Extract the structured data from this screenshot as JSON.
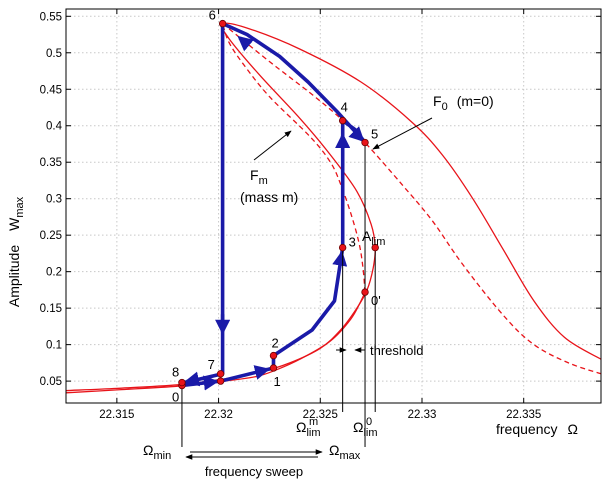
{
  "chart_data": {
    "type": "line",
    "ylabel": "Amplitude",
    "ylabel_symbol": {
      "base": "W",
      "sub": "max"
    },
    "xlabel": "frequency",
    "xlabel_symbol": "Ω",
    "xlim": [
      22.3125,
      22.3388
    ],
    "ylim": [
      0.02,
      0.56
    ],
    "grid": true,
    "x_ticks": [
      {
        "v": 22.315,
        "label": "22.315"
      },
      {
        "v": 22.32,
        "label": "22.32"
      },
      {
        "v": 22.325,
        "label": "22.325"
      },
      {
        "v": 22.33,
        "label": "22.33"
      },
      {
        "v": 22.335,
        "label": "22.335"
      }
    ],
    "y_ticks": [
      {
        "v": 0.05,
        "label": "0.05"
      },
      {
        "v": 0.1,
        "label": "0.1"
      },
      {
        "v": 0.15,
        "label": "0.15"
      },
      {
        "v": 0.2,
        "label": "0.2"
      },
      {
        "v": 0.25,
        "label": "0.25"
      },
      {
        "v": 0.3,
        "label": "0.3"
      },
      {
        "v": 0.35,
        "label": "0.35"
      },
      {
        "v": 0.4,
        "label": "0.4"
      },
      {
        "v": 0.45,
        "label": "0.45"
      },
      {
        "v": 0.5,
        "label": "0.5"
      },
      {
        "v": 0.55,
        "label": "0.55"
      }
    ],
    "series": [
      {
        "id": "F0-solid",
        "color": "#e8141a",
        "style": "solid",
        "points": [
          [
            22.3125,
            0.037
          ],
          [
            22.315,
            0.04
          ],
          [
            22.318,
            0.045
          ],
          [
            22.32,
            0.052
          ],
          [
            22.322,
            0.062
          ],
          [
            22.3235,
            0.075
          ],
          [
            22.325,
            0.095
          ],
          [
            22.326,
            0.12
          ],
          [
            22.3268,
            0.15
          ],
          [
            22.3273,
            0.175
          ],
          [
            22.3276,
            0.205
          ],
          [
            22.3277,
            0.233
          ],
          [
            22.3275,
            0.265
          ],
          [
            22.3268,
            0.31
          ],
          [
            22.3255,
            0.36
          ],
          [
            22.324,
            0.41
          ],
          [
            22.322,
            0.47
          ],
          [
            22.3205,
            0.52
          ],
          [
            22.3202,
            0.54
          ],
          [
            22.3215,
            0.533
          ],
          [
            22.324,
            0.505
          ],
          [
            22.327,
            0.46
          ],
          [
            22.3295,
            0.405
          ],
          [
            22.331,
            0.36
          ],
          [
            22.3325,
            0.3
          ],
          [
            22.334,
            0.23
          ],
          [
            22.3355,
            0.16
          ],
          [
            22.337,
            0.11
          ],
          [
            22.3388,
            0.08
          ]
        ]
      },
      {
        "id": "Fm-solid",
        "color": "#e8141a",
        "style": "solid",
        "points": [
          [
            22.3125,
            0.034
          ],
          [
            22.315,
            0.038
          ],
          [
            22.318,
            0.043
          ],
          [
            22.32,
            0.049
          ],
          [
            22.3218,
            0.056
          ],
          [
            22.3228,
            0.065
          ],
          [
            22.324,
            0.08
          ],
          [
            22.3255,
            0.105
          ],
          [
            22.3265,
            0.135
          ],
          [
            22.327,
            0.16
          ],
          [
            22.3272,
            0.172
          ]
        ]
      },
      {
        "id": "Fm-dashed-lower",
        "color": "#e8141a",
        "style": "dashed",
        "points": [
          [
            22.3272,
            0.172
          ],
          [
            22.3271,
            0.205
          ],
          [
            22.3269,
            0.24
          ],
          [
            22.3265,
            0.28
          ],
          [
            22.326,
            0.32
          ],
          [
            22.3255,
            0.35
          ],
          [
            22.3245,
            0.385
          ],
          [
            22.3225,
            0.44
          ],
          [
            22.3212,
            0.485
          ],
          [
            22.3205,
            0.515
          ],
          [
            22.3202,
            0.54
          ]
        ]
      },
      {
        "id": "Fm-dashed-upper",
        "color": "#e8141a",
        "style": "dashed",
        "points": [
          [
            22.3202,
            0.54
          ],
          [
            22.3225,
            0.488
          ],
          [
            22.3245,
            0.445
          ],
          [
            22.326,
            0.41
          ],
          [
            22.3272,
            0.377
          ],
          [
            22.329,
            0.32
          ],
          [
            22.3305,
            0.27
          ],
          [
            22.332,
            0.21
          ],
          [
            22.334,
            0.14
          ],
          [
            22.3355,
            0.1
          ],
          [
            22.3372,
            0.075
          ],
          [
            22.3388,
            0.06
          ]
        ]
      }
    ],
    "path": {
      "color": "#1a1aa8",
      "points": [
        [
          22.3182,
          0.044
        ],
        [
          22.3201,
          0.05
        ],
        [
          22.3227,
          0.068
        ],
        [
          22.3227,
          0.085
        ],
        [
          22.3246,
          0.12
        ],
        [
          22.3257,
          0.16
        ],
        [
          22.3261,
          0.233
        ],
        [
          22.3261,
          0.407
        ],
        [
          22.3267,
          0.395
        ],
        [
          22.3272,
          0.377
        ],
        [
          22.3258,
          0.42
        ],
        [
          22.3244,
          0.46
        ],
        [
          22.323,
          0.495
        ],
        [
          22.3214,
          0.525
        ],
        [
          22.3202,
          0.54
        ],
        [
          22.3202,
          0.06
        ],
        [
          22.3185,
          0.049
        ],
        [
          22.3182,
          0.048
        ]
      ],
      "arrows": [
        {
          "from": [
            22.3182,
            0.044
          ],
          "to": [
            22.3201,
            0.05
          ]
        },
        {
          "from": [
            22.3201,
            0.05
          ],
          "to": [
            22.3227,
            0.068
          ]
        },
        {
          "from": [
            22.3257,
            0.165
          ],
          "to": [
            22.3261,
            0.233
          ]
        },
        {
          "from": [
            22.3261,
            0.233
          ],
          "to": [
            22.3261,
            0.407
          ]
        },
        {
          "from": [
            22.3261,
            0.407
          ],
          "to": [
            22.3272,
            0.377
          ]
        },
        {
          "from": [
            22.3272,
            0.377
          ],
          "to": [
            22.3202,
            0.54
          ]
        },
        {
          "from": [
            22.3202,
            0.54
          ],
          "to": [
            22.3202,
            0.06
          ]
        },
        {
          "from": [
            22.3202,
            0.06
          ],
          "to": [
            22.3182,
            0.048
          ]
        }
      ]
    },
    "points": [
      {
        "label": "0",
        "x": 22.3182,
        "y": 0.044,
        "dx": -10,
        "dy": 16
      },
      {
        "label": "8",
        "x": 22.3182,
        "y": 0.048,
        "dx": -10,
        "dy": -6
      },
      {
        "label": "1",
        "x": 22.3227,
        "y": 0.068,
        "dx": 0,
        "dy": 18
      },
      {
        "label": "2",
        "x": 22.3227,
        "y": 0.085,
        "dx": -2,
        "dy": -8
      },
      {
        "label": "7",
        "x": 22.3201,
        "y": 0.06,
        "dx": -13,
        "dy": -5
      },
      {
        "label": "",
        "x": 22.3201,
        "y": 0.05,
        "dx": 0,
        "dy": 0
      },
      {
        "label": "3",
        "x": 22.3261,
        "y": 0.233,
        "dx": 6,
        "dy": -1
      },
      {
        "label": "4",
        "x": 22.3261,
        "y": 0.407,
        "dx": -2,
        "dy": -9
      },
      {
        "label": "5",
        "x": 22.3272,
        "y": 0.377,
        "dx": 6,
        "dy": -4
      },
      {
        "label": "6",
        "x": 22.3202,
        "y": 0.54,
        "dx": -14,
        "dy": -4
      },
      {
        "label": "0'",
        "x": 22.3272,
        "y": 0.172,
        "dx": 6,
        "dy": 13
      },
      {
        "label": "",
        "x": 22.3277,
        "y": 0.233,
        "dx": 0,
        "dy": 0
      }
    ],
    "annotations": {
      "F0": {
        "base": "F",
        "sub": "0",
        "rest": "(m=0)"
      },
      "Fm": {
        "base": "F",
        "sub": "m",
        "rest": "(mass m)"
      },
      "Alim": {
        "base": "A",
        "sub": "lim"
      },
      "omega_lim_m": {
        "base": "Ω",
        "sub": "lim",
        "sup": "m"
      },
      "omega_lim_0": {
        "base": "Ω",
        "sub": "lim",
        "sup": "0"
      },
      "omega_min": {
        "base": "Ω",
        "sub": "min"
      },
      "omega_max": {
        "base": "Ω",
        "sub": "max"
      },
      "threshold": "threshold",
      "sweep": "frequency sweep"
    },
    "markers": {
      "omega_min": 22.3182,
      "omega_lim_m": 22.3261,
      "omega_max": 22.3272,
      "omega_lim_0": 22.3277
    }
  }
}
